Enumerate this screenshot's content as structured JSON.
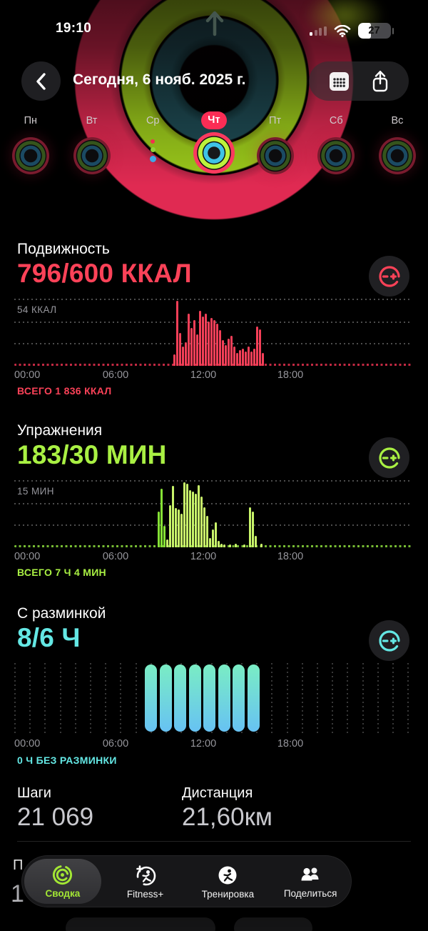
{
  "status_bar": {
    "time": "19:10",
    "battery": "27"
  },
  "header": {
    "title": "Сегодня, 6 нояб. 2025 г."
  },
  "week": {
    "days": [
      {
        "label": "Пн",
        "state": "dim"
      },
      {
        "label": "Вт",
        "state": "dim"
      },
      {
        "label": "Ср",
        "state": "dots"
      },
      {
        "label": "Чт",
        "state": "selected"
      },
      {
        "label": "Пт",
        "state": "dim"
      },
      {
        "label": "Сб",
        "state": "dim"
      },
      {
        "label": "Вс",
        "state": "dim"
      }
    ]
  },
  "sections": {
    "move": {
      "title": "Подвижность",
      "value": "796/600 ККАЛ",
      "max_label": "54 ККАЛ",
      "total": "ВСЕГО 1 836 ККАЛ",
      "color": "#fb4258"
    },
    "exercise": {
      "title": "Упражнения",
      "value": "183/30 МИН",
      "max_label": "15 МИН",
      "total": "ВСЕГО 7 Ч 4 МИН",
      "color": "#a9f043"
    },
    "stand": {
      "title": "С разминкой",
      "value": "8/6 Ч",
      "max_label": "",
      "total": "0 Ч БЕЗ РАЗМИНКИ",
      "color": "#64e7e4"
    }
  },
  "metrics": {
    "steps_label": "Шаги",
    "steps_value": "21 069",
    "distance_label": "Дистанция",
    "distance_value": "21,60км"
  },
  "behind": {
    "partial_title": "П",
    "partial_value": "1"
  },
  "tab_bar": {
    "tabs": [
      {
        "label": "Сводка",
        "selected": true
      },
      {
        "label": "Fitness+",
        "selected": false
      },
      {
        "label": "Тренировка",
        "selected": false
      },
      {
        "label": "Поделиться",
        "selected": false
      }
    ]
  },
  "chart_data": [
    {
      "id": "move",
      "type": "bar",
      "title": "Подвижность (ккал за 24 ч)",
      "ylabel": "ККАЛ",
      "y_max": 54,
      "total_kcal": 1836,
      "goal": 600,
      "achieved": 796,
      "x_ticks": [
        "00:00",
        "06:00",
        "12:00",
        "18:00"
      ],
      "color": "#f53f58",
      "baseline_color": "rgba(228,48,78,0.85)",
      "bars_start_hour": 10,
      "values": [
        0.18,
        1.0,
        0.5,
        0.3,
        0.36,
        0.8,
        0.58,
        0.7,
        0.48,
        0.85,
        0.76,
        0.8,
        0.68,
        0.74,
        0.7,
        0.65,
        0.55,
        0.4,
        0.32,
        0.42,
        0.46,
        0.3,
        0.2,
        0.24,
        0.26,
        0.22,
        0.3,
        0.22,
        0.26,
        0.6,
        0.56,
        0.2
      ]
    },
    {
      "id": "exercise",
      "type": "bar",
      "title": "Упражнения (мин за 24 ч)",
      "ylabel": "МИН",
      "y_max": 15,
      "total_min": 424,
      "goal": 30,
      "achieved": 183,
      "x_ticks": [
        "00:00",
        "06:00",
        "12:00",
        "18:00"
      ],
      "color": "#c9f56a",
      "alt_color": "#85e135",
      "alt_indices": [
        0,
        1,
        2
      ],
      "baseline_color": "rgba(140,220,60,0.85)",
      "bars_start_hour": 9,
      "values": [
        0.55,
        0.9,
        0.33,
        0.12,
        0.65,
        0.95,
        0.6,
        0.58,
        0.52,
        1.0,
        0.98,
        0.88,
        0.86,
        0.82,
        0.96,
        0.78,
        0.62,
        0.48,
        0.14,
        0.28,
        0.38,
        0.1,
        0.06,
        0.04,
        0,
        0.04,
        0,
        0.05,
        0,
        0,
        0.04,
        0,
        0.62,
        0.55,
        0.18,
        0,
        0.05
      ]
    },
    {
      "id": "stand",
      "type": "capsule",
      "title": "С разминкой (часы за 24 ч)",
      "ylabel": "Ч",
      "goal": 6,
      "achieved": 8,
      "hours_without": 0,
      "x_ticks": [
        "00:00",
        "06:00",
        "12:00",
        "18:00"
      ],
      "gradient_top": "#7aedc4",
      "gradient_bottom": "#67c2f3",
      "filled_hours_start": "09:00",
      "filled_hours_count": 8,
      "values": [
        1,
        1,
        1,
        1,
        1,
        1,
        1,
        1
      ]
    }
  ]
}
